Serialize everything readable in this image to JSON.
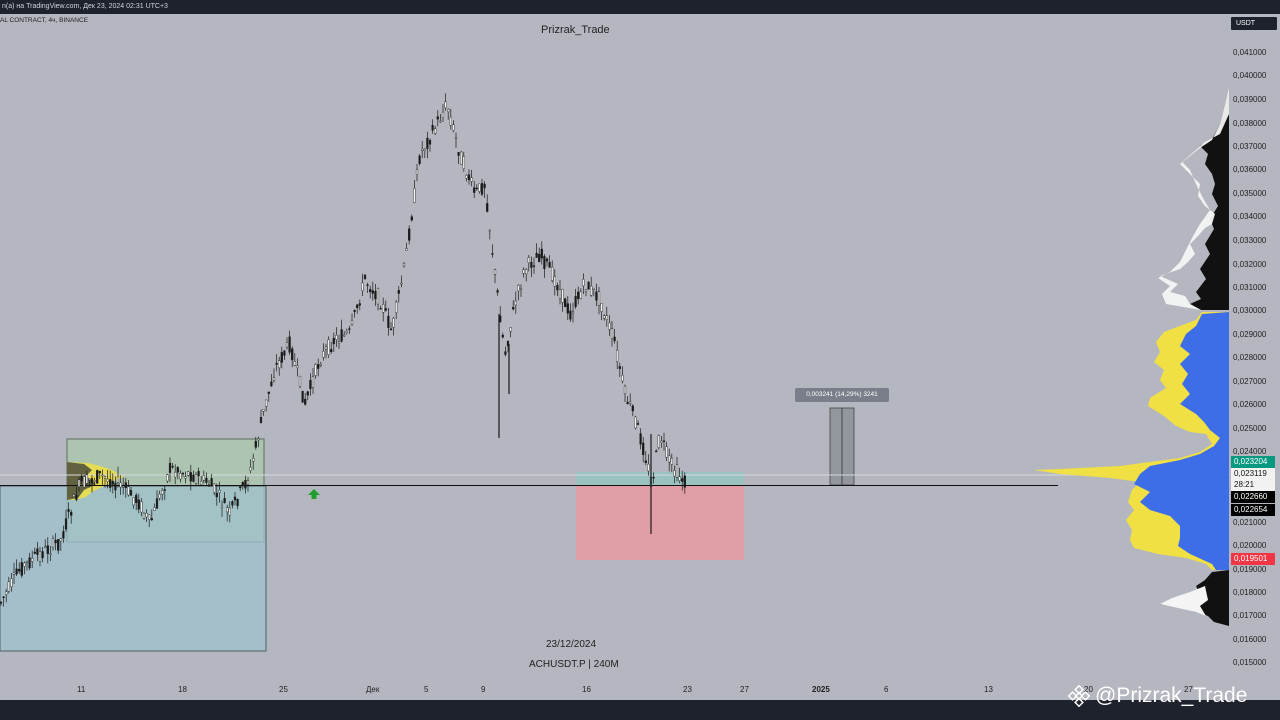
{
  "header": {
    "published_line": "n(a) на TradingView.com, Дек 23, 2024 02:31 UTC+3",
    "symbol_line": "AL CONTRACT, 4ч, BINANCE",
    "author": "Prizrak_Trade"
  },
  "currency_badge": "USDT",
  "price_axis": [
    "0,041000",
    "0,040000",
    "0,039000",
    "0,038000",
    "0,037000",
    "0,036000",
    "0,035000",
    "0,034000",
    "0,033000",
    "0,032000",
    "0,031000",
    "0,030000",
    "0,029000",
    "0,028000",
    "0,027000",
    "0,026000",
    "0,025000",
    "0,024000",
    "0,021000",
    "0,020000",
    "0,019000",
    "0,018000",
    "0,017000",
    "0,016000",
    "0,015000"
  ],
  "price_badges": {
    "green": "0,023204",
    "last": "0,023119",
    "countdown": "28:21",
    "black1": "0,022660",
    "black2": "0,022654",
    "red": "0,019501"
  },
  "time_axis": [
    "11",
    "18",
    "25",
    "Дек",
    "5",
    "9",
    "16",
    "23",
    "27",
    "2025",
    "6",
    "13",
    "20",
    "27"
  ],
  "center_info": {
    "date": "23/12/2024",
    "symbol": "ACHUSDT.P | 240M"
  },
  "measure_tooltip": "0,003241 (14,29%) 3241",
  "watermark": "@Prizrak_Trade",
  "colors": {
    "background": "#b4b7bf",
    "bar": "#1e222d",
    "volume_blue": "#3d6ee8",
    "volume_yellow": "#f0e043",
    "green_badge": "#089981",
    "red_badge": "#f23645"
  }
}
